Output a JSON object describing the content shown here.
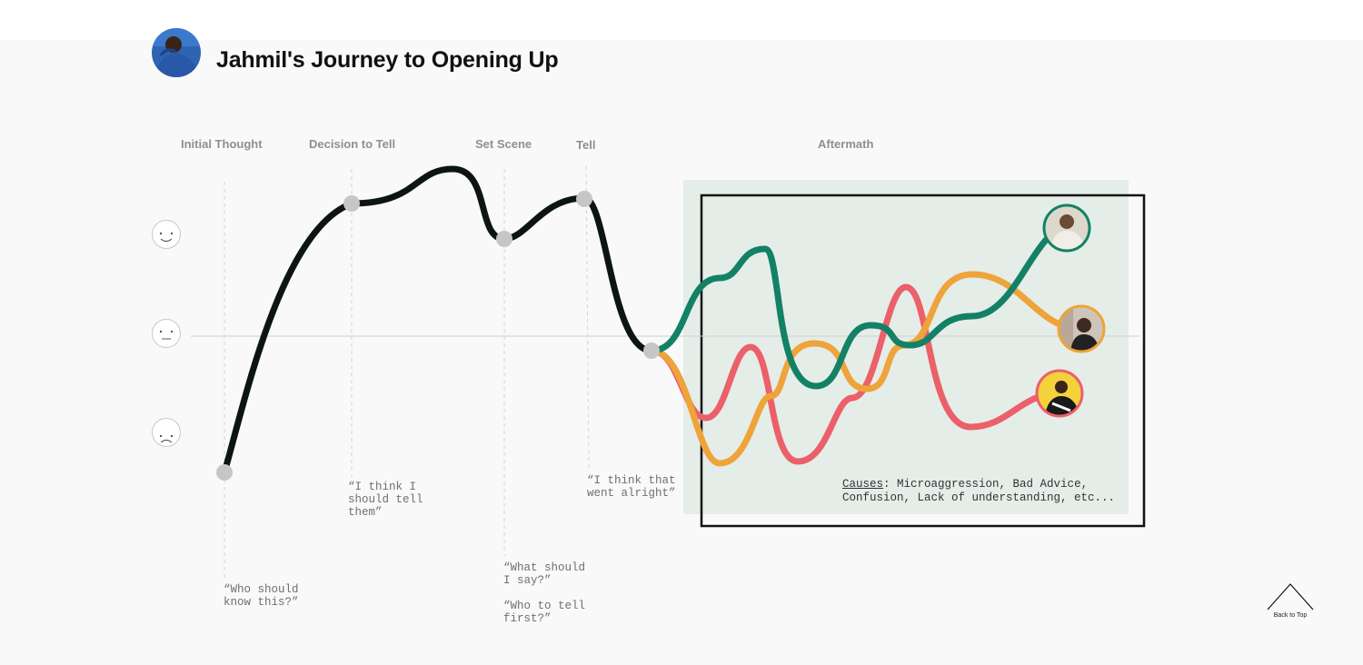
{
  "header": {
    "title": "Jahmil's Journey to Opening Up",
    "avatar_icon": "person-avatar-icon"
  },
  "phases": [
    {
      "label": "Initial  Thought"
    },
    {
      "label": "Decision to Tell"
    },
    {
      "label": "Set Scene"
    },
    {
      "label": "Tell"
    },
    {
      "label": "Aftermath"
    }
  ],
  "mood_scale": [
    "happy-face-icon",
    "neutral-face-icon",
    "sad-face-icon"
  ],
  "quotes": {
    "initial": "“Who should\nknow this?”",
    "decision": "“I think I\nshould tell\nthem”",
    "scene_1": "“What should\nI say?”",
    "scene_2": "“Who to tell\nfirst?”",
    "tell": "“I think that\nwent alright”"
  },
  "aftermath": {
    "causes_label": "Causes",
    "causes_line1": "Microaggression, Bad Advice,",
    "causes_line2": "Confusion, Lack of understanding, etc...",
    "colors": {
      "green": "#138165",
      "orange": "#eea43a",
      "red": "#eb6069",
      "box_fill": "#e5ede8",
      "main_line": "#0d1512"
    }
  },
  "navigation": {
    "back_to_top": "Back to Top",
    "back_to_top_icon": "chevron-up-icon"
  }
}
